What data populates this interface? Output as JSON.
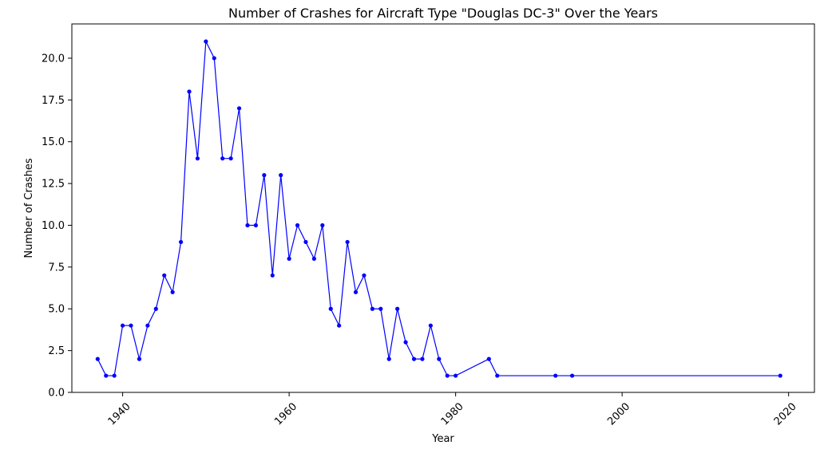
{
  "chart_data": {
    "type": "line",
    "title": "Number of Crashes for Aircraft Type \"Douglas DC-3\" Over the Years",
    "xlabel": "Year",
    "ylabel": "Number of Crashes",
    "xlim": [
      1933.9,
      2023.1
    ],
    "ylim": [
      0,
      22.05
    ],
    "x_ticks": [
      1940,
      1960,
      1980,
      2000,
      2020
    ],
    "x_tick_labels": [
      "1940",
      "1960",
      "1980",
      "2000",
      "2020"
    ],
    "y_ticks": [
      0,
      2.5,
      5,
      7.5,
      10,
      12.5,
      15,
      17.5,
      20
    ],
    "y_tick_labels": [
      "0.0",
      "2.5",
      "5.0",
      "7.5",
      "10.0",
      "12.5",
      "15.0",
      "17.5",
      "20.0"
    ],
    "grid": false,
    "legend": false,
    "series": [
      {
        "color": "#0000ff",
        "x": [
          1937,
          1938,
          1939,
          1940,
          1941,
          1942,
          1943,
          1944,
          1945,
          1946,
          1947,
          1948,
          1949,
          1950,
          1951,
          1952,
          1953,
          1954,
          1955,
          1956,
          1957,
          1958,
          1959,
          1960,
          1961,
          1962,
          1963,
          1964,
          1965,
          1966,
          1967,
          1968,
          1969,
          1970,
          1971,
          1972,
          1973,
          1974,
          1975,
          1976,
          1977,
          1978,
          1979,
          1980,
          1984,
          1985,
          1992,
          1994,
          2019
        ],
        "y": [
          2,
          1,
          1,
          4,
          4,
          2,
          4,
          5,
          7,
          6,
          9,
          18,
          14,
          21,
          20,
          14,
          14,
          17,
          10,
          10,
          13,
          7,
          13,
          8,
          10,
          9,
          8,
          10,
          5,
          4,
          9,
          6,
          7,
          5,
          5,
          2,
          5,
          3,
          2,
          2,
          4,
          2,
          1,
          1,
          2,
          1,
          1,
          1,
          1
        ]
      }
    ]
  }
}
